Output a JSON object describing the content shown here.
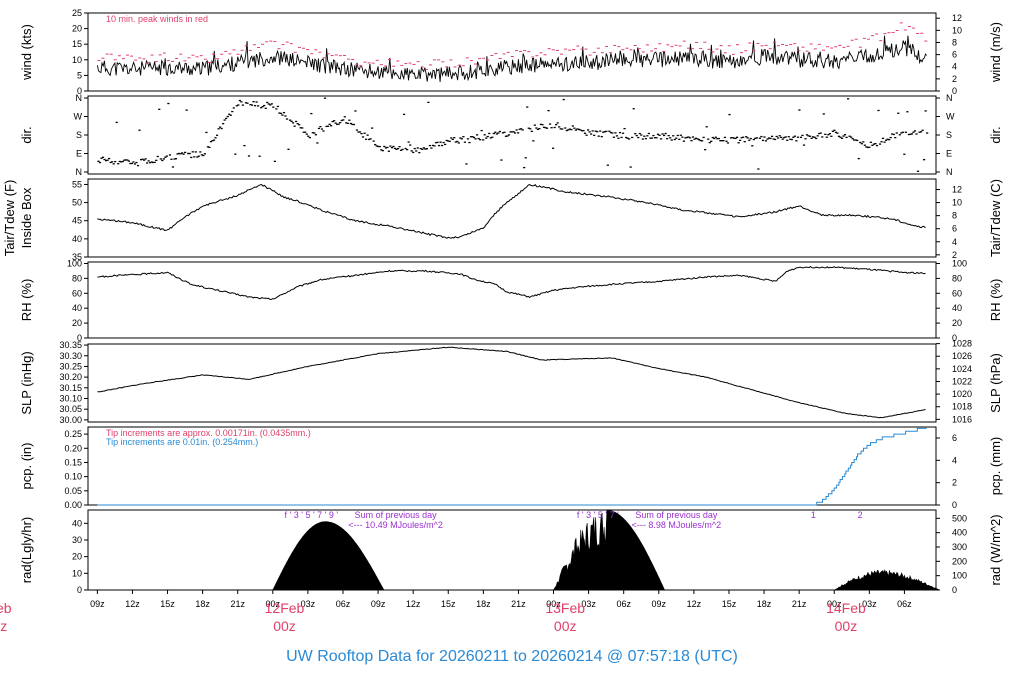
{
  "title": "UW Rooftop Data for 20260211  to  20260214 @ 07:57:18  (UTC)",
  "colors": {
    "peak": "#e0406a",
    "precip_fine": "#e0406a",
    "precip_std": "#2a8ad4",
    "solar_note": "#9b30d0",
    "day_label": "#e0406a",
    "title": "#2a8ad4"
  },
  "chart_data": [
    {
      "type": "line",
      "name": "wind",
      "ylabel": "wind (kts)",
      "ylabel_right": "wind (m/s)",
      "ylim": [
        0,
        25
      ],
      "yticks": [
        0,
        5,
        10,
        15,
        20,
        25
      ],
      "yticks_right": [
        "0",
        "2",
        "4",
        "6",
        "8",
        "10",
        "12"
      ],
      "yticks_right_values": [
        0,
        2,
        4,
        6,
        8,
        10,
        12
      ],
      "right_to_left_factor": 1.944,
      "annotation": "10 min. peak winds in red",
      "x_hours": [
        0,
        3,
        6,
        9,
        12,
        15,
        18,
        21,
        24,
        27,
        30,
        33,
        36,
        39,
        42,
        45,
        48,
        51,
        54,
        57,
        60,
        63,
        66,
        69,
        72
      ],
      "mean_kts": [
        7.5,
        7,
        7.5,
        7,
        9,
        11,
        9,
        7,
        6,
        5,
        5.5,
        6.5,
        8,
        8.5,
        9,
        10,
        10,
        10.5,
        9,
        11,
        10,
        9.5,
        11,
        14,
        8.5
      ],
      "peak_kts": [
        11,
        10,
        11,
        10,
        13,
        15,
        13,
        10,
        9,
        8,
        9,
        10,
        12,
        13,
        13,
        14,
        14,
        15,
        13,
        15,
        14,
        14,
        16,
        21,
        13
      ]
    },
    {
      "type": "scatter",
      "name": "direction",
      "ylabel": "dir.",
      "ylabel_right": "dir.",
      "yticks_labels": [
        "N",
        "E",
        "S",
        "W",
        "N"
      ],
      "yticks_values": [
        0,
        90,
        180,
        270,
        360
      ],
      "x_hours": [
        0,
        3,
        6,
        9,
        12,
        15,
        18,
        21,
        24,
        27,
        30,
        33,
        36,
        39,
        42,
        45,
        48,
        51,
        54,
        57,
        60,
        63,
        66,
        69,
        72
      ],
      "deg": [
        60,
        40,
        75,
        90,
        340,
        320,
        180,
        260,
        120,
        100,
        150,
        170,
        200,
        230,
        190,
        175,
        175,
        160,
        155,
        160,
        165,
        190,
        130,
        195,
        185
      ]
    },
    {
      "type": "line",
      "name": "temperature",
      "ylabel": "Tair/Tdew (F)",
      "ylabel2": "Inside Box",
      "ylabel_right": "Tair/Tdew (C)",
      "ylim": [
        35,
        56.5
      ],
      "yticks": [
        35,
        40,
        45,
        50,
        55
      ],
      "yticks_right": [
        "2",
        "4",
        "6",
        "8",
        "10",
        "12"
      ],
      "yticks_right_values": [
        2,
        4,
        6,
        8,
        10,
        12
      ],
      "x_hours": [
        0,
        3,
        6,
        7,
        9,
        12,
        14,
        16,
        17,
        20,
        22,
        25,
        28,
        30,
        31,
        33,
        34,
        35,
        37,
        40,
        44,
        47,
        50,
        55,
        58,
        60,
        62,
        65,
        68,
        70,
        72
      ],
      "values": [
        45.5,
        44.5,
        42.3,
        45,
        49,
        52,
        55,
        51.5,
        50.5,
        47,
        45,
        43.5,
        41.5,
        40.3,
        40.5,
        43,
        47,
        50,
        55,
        53,
        51.5,
        50,
        48,
        46,
        47.5,
        49,
        46.5,
        46.5,
        45.5,
        43.5,
        42.5
      ]
    },
    {
      "type": "line",
      "name": "relative_humidity",
      "ylabel": "RH (%)",
      "ylabel_right": "RH (%)",
      "ylim": [
        0,
        102
      ],
      "yticks": [
        0,
        20,
        40,
        60,
        80,
        100
      ],
      "yticks_right": [
        "0",
        "20",
        "40",
        "60",
        "80",
        "100"
      ],
      "yticks_right_values": [
        0,
        20,
        40,
        60,
        80,
        100
      ],
      "x_hours": [
        0,
        3,
        6,
        8,
        10,
        13,
        15,
        17,
        19,
        22,
        25,
        28,
        31,
        32,
        34,
        35,
        37,
        39,
        41,
        44,
        48,
        52,
        55,
        58,
        59,
        60,
        63,
        66,
        69,
        72
      ],
      "values": [
        82,
        85,
        88,
        72,
        65,
        55,
        52,
        68,
        78,
        84,
        90,
        90,
        86,
        80,
        72,
        62,
        55,
        64,
        68,
        72,
        76,
        82,
        84,
        76,
        90,
        95,
        95,
        92,
        88,
        86
      ]
    },
    {
      "type": "line",
      "name": "sea_level_pressure",
      "ylabel": "SLP (inHg)",
      "ylabel_right": "SLP (hPa)",
      "ylim": [
        29.99,
        30.355
      ],
      "yticks": [
        30.0,
        30.05,
        30.1,
        30.15,
        30.2,
        30.25,
        30.3,
        30.35
      ],
      "yticks_labels": [
        "30.00",
        "30.05",
        "30.10",
        "30.15",
        "30.20",
        "30.25",
        "30.30",
        "30.35"
      ],
      "yticks_right": [
        "1016",
        "1018",
        "1020",
        "1022",
        "1024",
        "1026",
        "1028"
      ],
      "yticks_right_values": [
        1016,
        1018,
        1020,
        1022,
        1024,
        1026,
        1028
      ],
      "x_hours": [
        0,
        4,
        9,
        13,
        18,
        24,
        30,
        35,
        38,
        44,
        48,
        52,
        56,
        60,
        64,
        67,
        69,
        72
      ],
      "values": [
        30.13,
        30.17,
        30.21,
        30.19,
        30.25,
        30.31,
        30.34,
        30.32,
        30.28,
        30.29,
        30.24,
        30.2,
        30.14,
        30.08,
        30.03,
        30.01,
        30.03,
        30.06
      ]
    },
    {
      "type": "line",
      "name": "precipitation",
      "ylabel": "pcp. (in)",
      "ylabel_right": "pcp. (mm)",
      "ylim": [
        0,
        0.275
      ],
      "yticks": [
        0,
        0.05,
        0.1,
        0.15,
        0.2,
        0.25
      ],
      "yticks_labels": [
        "0.00",
        "0.05",
        "0.10",
        "0.15",
        "0.20",
        "0.25"
      ],
      "yticks_right": [
        "0",
        "2",
        "4",
        "6"
      ],
      "yticks_right_values": [
        0,
        2,
        4,
        6
      ],
      "notes": [
        "Tip increments are approx. 0.00171in. (0.0435mm.)",
        "Tip increments are 0.01in. (0.254mm.)"
      ],
      "x_hours": [
        0,
        61,
        62,
        63,
        64,
        65,
        66,
        67,
        68,
        69,
        70,
        72
      ],
      "values": [
        0,
        0,
        0.02,
        0.06,
        0.12,
        0.18,
        0.22,
        0.24,
        0.25,
        0.26,
        0.27,
        0.27
      ]
    },
    {
      "type": "area",
      "name": "solar_radiation",
      "ylabel": "rad(Lgly/hr)",
      "ylabel_right": "rad (W/m^2)",
      "ylim": [
        0,
        48
      ],
      "yticks": [
        0,
        10,
        20,
        30,
        40
      ],
      "yticks_right": [
        "0",
        "100",
        "200",
        "300",
        "400",
        "500"
      ],
      "yticks_right_values": [
        0,
        100,
        200,
        300,
        400,
        500
      ],
      "notes": [
        {
          "hour": 24,
          "line1": "Sum of previous day",
          "line2": "<--- 10.49 MJoules/m^2"
        },
        {
          "hour": 48,
          "line1": "Sum of previous day",
          "line2": "<--- 8.98 MJoules/m^2"
        }
      ],
      "marks": [
        {
          "hour": 16,
          "label": "f  '  3  '  5  '  7  '  9   '"
        },
        {
          "hour": 41,
          "label": "f  '  3  '  5  '  7  '"
        },
        {
          "hour": 61,
          "label": "1"
        },
        {
          "hour": 65,
          "label": "2"
        }
      ],
      "days": [
        {
          "start": 15,
          "peak": 19.5,
          "end": 24.5,
          "max": 41
        },
        {
          "start": 39,
          "peak": 43.5,
          "end": 48.5,
          "max": 48
        },
        {
          "start": 63,
          "peak": 67,
          "end": 72,
          "max": 11
        }
      ]
    }
  ],
  "x_axis": {
    "tick_hours": [
      0,
      3,
      6,
      9,
      12,
      15,
      18,
      21,
      24,
      27,
      30,
      33,
      36,
      39,
      42,
      45,
      48,
      51,
      54,
      57,
      60,
      63,
      66,
      69,
      72
    ],
    "tick_labels": [
      "09z",
      "12z",
      "15z",
      "18z",
      "21z",
      "00z",
      "03z",
      "06z",
      "09z",
      "12z",
      "15z",
      "18z",
      "21z",
      "00z",
      "03z",
      "06z",
      "09z",
      "12z",
      "15z",
      "18z",
      "21z",
      "00z",
      "03z",
      "06z",
      ""
    ],
    "day_labels": [
      {
        "hour": -8,
        "date": "eb",
        "time": "z"
      },
      {
        "hour": 16,
        "date": "12Feb",
        "time": "00z"
      },
      {
        "hour": 40,
        "date": "13Feb",
        "time": "00z"
      },
      {
        "hour": 64,
        "date": "14Feb",
        "time": "00z"
      }
    ]
  }
}
